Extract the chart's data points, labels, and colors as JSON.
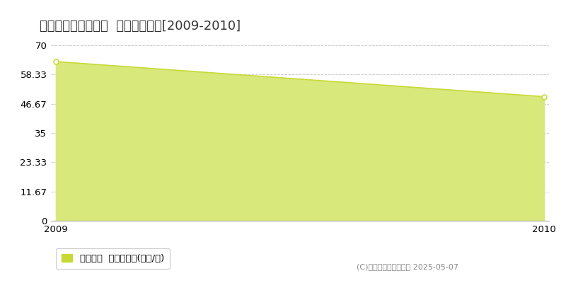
{
  "title": "神戸市兵庫区東山町  土地価格推移[2009-2010]",
  "years": [
    2009,
    2010
  ],
  "values": [
    63.5,
    49.5
  ],
  "ylim": [
    0,
    70
  ],
  "yticks": [
    0,
    11.67,
    23.33,
    35,
    46.67,
    58.33,
    70
  ],
  "ytick_labels": [
    "0",
    "11.67",
    "23.33",
    "35",
    "46.67",
    "58.33",
    "70"
  ],
  "line_color": "#c8d936",
  "fill_color": "#d8e87a",
  "fill_alpha": 1.0,
  "marker_face": "#ffffff",
  "grid_color": "#cccccc",
  "background_color": "#ffffff",
  "legend_label": "土地価格  平均坪単価(万円/坪)",
  "copyright_text": "(C)土地価格ドットコム 2025-05-07",
  "title_fontsize": 13,
  "tick_fontsize": 9.5,
  "legend_fontsize": 9.5,
  "copyright_fontsize": 8
}
